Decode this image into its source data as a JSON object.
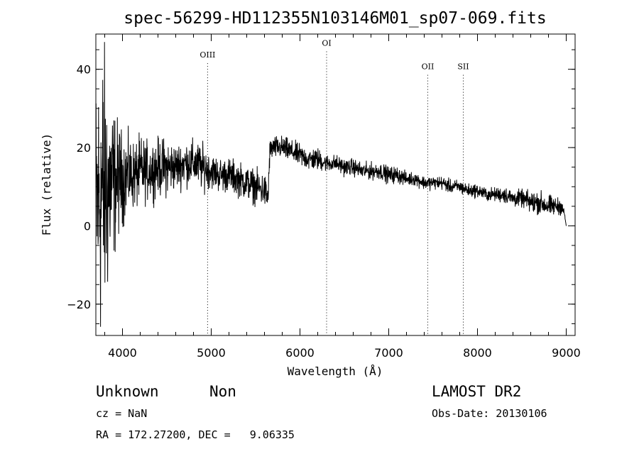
{
  "chart_data": {
    "type": "line",
    "title": "spec-56299-HD112355N103146M01_sp07-069.fits",
    "xlabel": "Wavelength (Å)",
    "ylabel": "Flux (relative)",
    "xlim": [
      3700,
      9100
    ],
    "ylim": [
      -28,
      49
    ],
    "grid": false,
    "legend": "none",
    "x_ticks": [
      4000,
      5000,
      6000,
      7000,
      8000,
      9000
    ],
    "y_ticks": [
      -20,
      0,
      20,
      40
    ],
    "x_minor_step": 200,
    "y_minor_step": 5,
    "line_color": "#000000",
    "lines": [
      {
        "name": "OIII",
        "x": 4959,
        "label_y": 43
      },
      {
        "name": "OI",
        "x": 6300,
        "label_y": 46
      },
      {
        "name": "OII",
        "x": 7440,
        "label_y": 40
      },
      {
        "name": "SII",
        "x": 7840,
        "label_y": 40
      }
    ],
    "series": [
      {
        "x": [
          3700,
          3720,
          3740,
          3760,
          3780,
          3800,
          3830,
          3860,
          3890,
          3920,
          3950,
          3980,
          4000,
          4050,
          4100,
          4150,
          4200,
          4300,
          4400,
          4500,
          4600,
          4700,
          4800,
          4900,
          5000,
          5100,
          5200,
          5300,
          5400,
          5500,
          5600,
          5640,
          5660,
          5700,
          5800,
          5900,
          6000,
          6100,
          6200,
          6300,
          6400,
          6500,
          6600,
          6700,
          6800,
          6900,
          7000,
          7100,
          7200,
          7300,
          7400,
          7500,
          7600,
          7700,
          7800,
          7900,
          8000,
          8100,
          8200,
          8300,
          8400,
          8500,
          8600,
          8700,
          8800,
          8900,
          8950,
          8980,
          9000
        ],
        "y": [
          5,
          6,
          8,
          8,
          9,
          9,
          10,
          10,
          11,
          11,
          12,
          12,
          12,
          13,
          13,
          13,
          14,
          14,
          15,
          15,
          15,
          16,
          16,
          15,
          14,
          13,
          13,
          12,
          11,
          10,
          9,
          7,
          19,
          20,
          20,
          19,
          18,
          17,
          17,
          16,
          16,
          15,
          15,
          14,
          14,
          14,
          13,
          13,
          12,
          12,
          11,
          11,
          11,
          10,
          10,
          9,
          9,
          8,
          8,
          8,
          7,
          7,
          6,
          6,
          5,
          5,
          5,
          3,
          0
        ],
        "noise": [
          22,
          22,
          26,
          26,
          26,
          24,
          20,
          16,
          14,
          12,
          10,
          9,
          8,
          7,
          6,
          6,
          6,
          5,
          5,
          5,
          4,
          4,
          4,
          4,
          3,
          3,
          3,
          3,
          3,
          3,
          3,
          3,
          2,
          2,
          2,
          2,
          2,
          2,
          2,
          1.5,
          1.5,
          1.5,
          1.5,
          1.5,
          1.5,
          1.5,
          1.5,
          1.5,
          1.2,
          1.2,
          1.2,
          1.2,
          1.2,
          1.2,
          1.2,
          1.2,
          1.2,
          1.2,
          1.2,
          1.5,
          1.5,
          1.5,
          2,
          2,
          2,
          1.5,
          1.5,
          0.5,
          0
        ]
      }
    ]
  },
  "info": {
    "class": "Unknown",
    "subclass": "Non",
    "survey": "LAMOST DR2",
    "redshift": "cz = NaN",
    "obs_date": "Obs-Date: 20130106",
    "coords": "RA = 172.27200, DEC =   9.06335"
  }
}
